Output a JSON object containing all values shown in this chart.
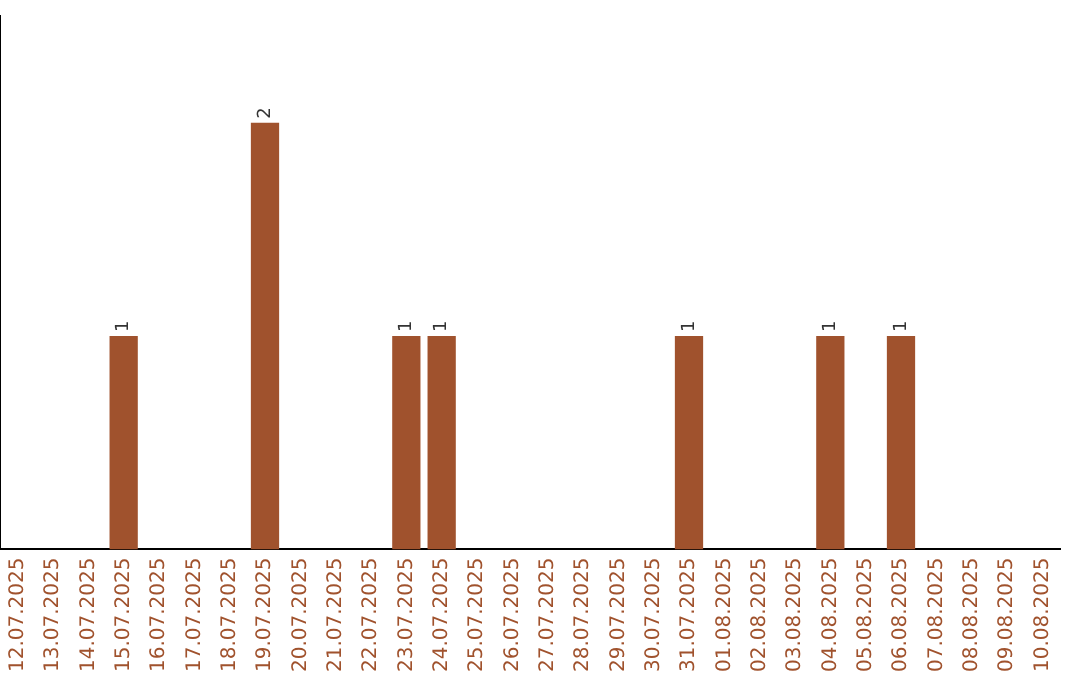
{
  "chart_data": {
    "type": "bar",
    "categories": [
      "12.07.2025",
      "13.07.2025",
      "14.07.2025",
      "15.07.2025",
      "16.07.2025",
      "17.07.2025",
      "18.07.2025",
      "19.07.2025",
      "20.07.2025",
      "21.07.2025",
      "22.07.2025",
      "23.07.2025",
      "24.07.2025",
      "25.07.2025",
      "26.07.2025",
      "27.07.2025",
      "28.07.2025",
      "29.07.2025",
      "30.07.2025",
      "31.07.2025",
      "01.08.2025",
      "02.08.2025",
      "03.08.2025",
      "04.08.2025",
      "05.08.2025",
      "06.08.2025",
      "07.08.2025",
      "08.08.2025",
      "09.08.2025",
      "10.08.2025"
    ],
    "values": [
      0,
      0,
      0,
      1,
      0,
      0,
      0,
      2,
      0,
      0,
      0,
      1,
      1,
      0,
      0,
      0,
      0,
      0,
      0,
      1,
      0,
      0,
      0,
      1,
      0,
      1,
      0,
      0,
      0,
      0
    ],
    "color": "#a0522d",
    "value_labels": [
      null,
      null,
      null,
      "1",
      null,
      null,
      null,
      "2",
      null,
      null,
      null,
      "1",
      "1",
      null,
      null,
      null,
      null,
      null,
      null,
      "1",
      null,
      null,
      null,
      "1",
      null,
      "1",
      null,
      null,
      null,
      null
    ],
    "grid": false,
    "legend": false
  }
}
